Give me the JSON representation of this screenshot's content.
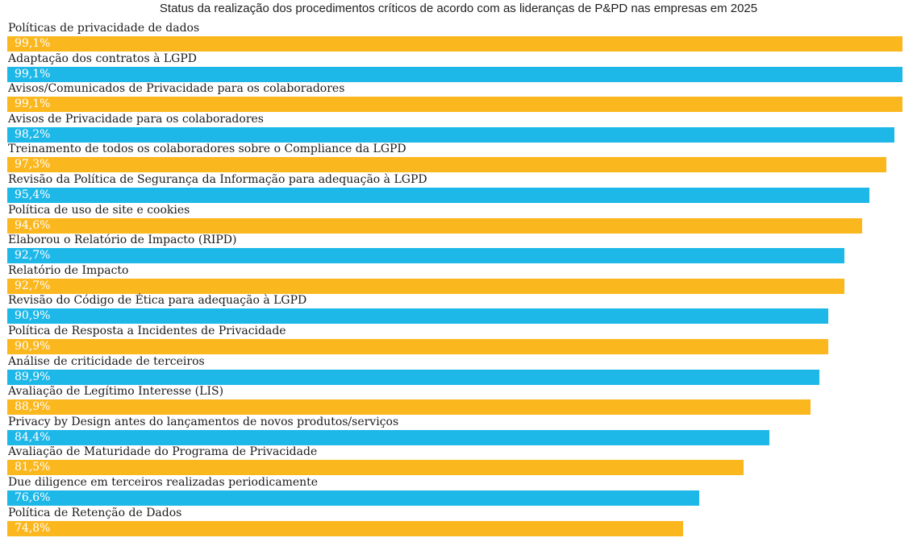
{
  "chart_data": {
    "type": "bar",
    "orientation": "horizontal",
    "title": "Status da realização dos procedimentos críticos de acordo com as lideranças de P&PD nas empresas em 2025",
    "xlim": [
      0,
      99.1
    ],
    "grid": false,
    "legend": "none",
    "colors": [
      "#FBB71E",
      "#1EB8E8"
    ],
    "categories": [
      "Políticas de privacidade de dados",
      "Adaptação dos contratos à LGPD",
      "Avisos/Comunicados de Privacidade para os colaboradores",
      "Avisos de Privacidade para os colaboradores",
      "Treinamento de todos os colaboradores sobre o Compliance da LGPD",
      "Revisão da Política de Segurança da Informação para adequação à LGPD",
      "Política de uso de site e cookies",
      "Elaborou o Relatório de Impacto (RIPD)",
      "Relatório de Impacto",
      "Revisão do Código de Ética para adequação à LGPD",
      "Política de Resposta a Incidentes de Privacidade",
      "Análise de criticidade de terceiros",
      "Avaliação de Legítimo Interesse (LIS)",
      "Privacy by Design antes do lançamentos de novos produtos/serviços",
      "Avaliação de Maturidade do Programa de Privacidade",
      "Due diligence em terceiros realizadas periodicamente",
      "Política de Retenção de Dados"
    ],
    "values": [
      99.1,
      99.1,
      99.1,
      98.2,
      97.3,
      95.4,
      94.6,
      92.7,
      92.7,
      90.9,
      90.9,
      89.9,
      88.9,
      84.4,
      81.5,
      76.6,
      74.8
    ],
    "value_labels": [
      "99,1%",
      "99,1%",
      "99,1%",
      "98,2%",
      "97,3%",
      "95,4%",
      "94,6%",
      "92,7%",
      "92,7%",
      "90,9%",
      "90,9%",
      "89,9%",
      "88,9%",
      "84,4%",
      "81,5%",
      "76,6%",
      "74,8%"
    ]
  }
}
